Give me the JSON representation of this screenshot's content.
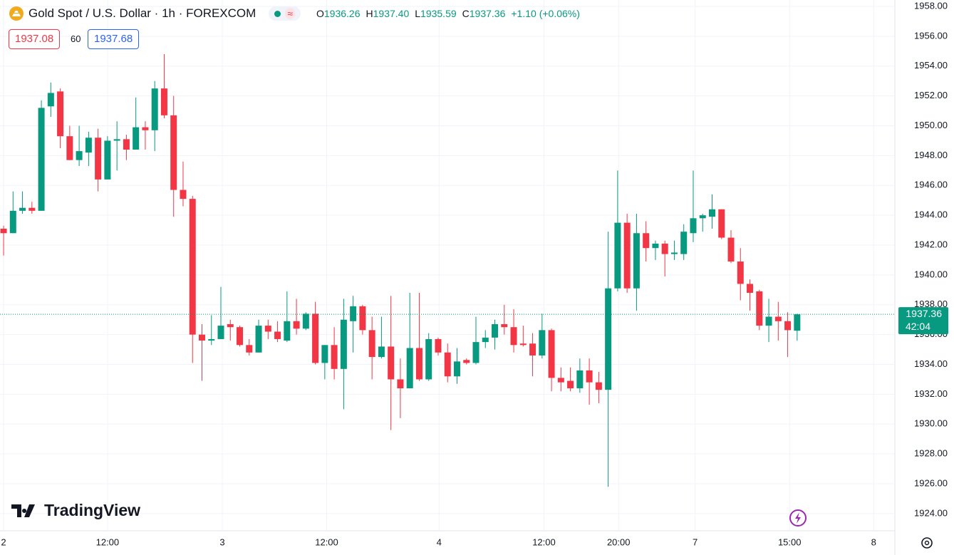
{
  "header": {
    "title": "Gold Spot / U.S. Dollar · 1h · FOREXCOM",
    "ohlc": [
      {
        "label": "O",
        "value": "1936.26"
      },
      {
        "label": "H",
        "value": "1937.40"
      },
      {
        "label": "L",
        "value": "1935.59"
      },
      {
        "label": "C",
        "value": "1937.36"
      }
    ],
    "change": "+1.10 (+0.06%)",
    "sell": "1937.08",
    "spread": "60",
    "buy": "1937.68",
    "brand": "TradingView"
  },
  "chart_data": {
    "type": "candlestick",
    "up_color": "#089981",
    "down_color": "#f23645",
    "grid": true,
    "open": [
      1943.1,
      1942.8,
      1944.3,
      1944.5,
      1944.3,
      1951.3,
      1952.3,
      1949.3,
      1947.7,
      1948.2,
      1949.2,
      1946.4,
      1949.0,
      1949.1,
      1948.4,
      1949.9,
      1949.7,
      1952.5,
      1950.7,
      1945.7,
      1945.1,
      1936.0,
      1935.6,
      1935.7,
      1936.7,
      1936.5,
      1935.3,
      1934.8,
      1936.6,
      1936.2,
      1935.6,
      1936.9,
      1936.4,
      1937.4,
      1934.1,
      1935.3,
      1933.7,
      1936.9,
      1937.9,
      1936.3,
      1934.5,
      1935.2,
      1933.0,
      1932.4,
      1935.1,
      1933.0,
      1935.7,
      1934.8,
      1933.2,
      1934.3,
      1934.1,
      1935.5,
      1935.8,
      1936.7,
      1936.5,
      1935.4,
      1935.4,
      1934.6,
      1936.3,
      1933.1,
      1932.9,
      1932.4,
      1933.6,
      1932.8,
      1932.3,
      1939.1,
      1943.5,
      1939.1,
      1942.8,
      1941.8,
      1942.1,
      1941.4,
      1941.4,
      1942.8,
      1943.8,
      1943.9,
      1944.4,
      1942.5,
      1940.9,
      1939.4,
      1938.9,
      1936.6,
      1937.2,
      1936.9,
      1936.26
    ],
    "high": [
      1943.3,
      1945.6,
      1945.6,
      1944.9,
      1951.7,
      1952.9,
      1952.5,
      1950.0,
      1950.0,
      1949.6,
      1949.8,
      1949.3,
      1950.3,
      1949.4,
      1951.9,
      1950.3,
      1953.0,
      1954.8,
      1952.0,
      1947.6,
      1945.3,
      1936.7,
      1937.3,
      1939.2,
      1937.0,
      1936.6,
      1935.7,
      1937.0,
      1937.0,
      1936.9,
      1938.9,
      1938.4,
      1937.5,
      1938.2,
      1935.3,
      1936.5,
      1938.4,
      1938.6,
      1938.0,
      1937.2,
      1937.2,
      1938.6,
      1934.4,
      1938.8,
      1938.8,
      1936.1,
      1935.8,
      1935.4,
      1935.1,
      1934.4,
      1937.2,
      1936.3,
      1937.0,
      1938.0,
      1937.7,
      1936.6,
      1936.1,
      1937.4,
      1936.4,
      1933.8,
      1933.8,
      1934.4,
      1934.4,
      1933.5,
      1942.9,
      1947.0,
      1944.1,
      1944.1,
      1943.6,
      1942.3,
      1942.3,
      1942.3,
      1943.4,
      1947.0,
      1944.1,
      1945.4,
      1944.4,
      1943.0,
      1941.8,
      1939.7,
      1939.0,
      1938.4,
      1938.2,
      1937.5,
      1937.4
    ],
    "low": [
      1941.3,
      1942.8,
      1944.1,
      1944.1,
      1944.3,
      1950.6,
      1948.5,
      1947.7,
      1947.3,
      1947.3,
      1945.6,
      1946.4,
      1947.0,
      1947.7,
      1948.4,
      1948.4,
      1948.3,
      1950.5,
      1943.9,
      1944.6,
      1934.1,
      1932.9,
      1935.3,
      1935.7,
      1935.6,
      1935.2,
      1934.6,
      1934.8,
      1935.7,
      1935.5,
      1935.5,
      1936.0,
      1936.3,
      1934.0,
      1933.0,
      1933.0,
      1931.0,
      1934.8,
      1936.0,
      1933.0,
      1934.4,
      1929.6,
      1930.4,
      1932.4,
      1932.9,
      1932.9,
      1934.6,
      1932.8,
      1932.7,
      1934.0,
      1934.0,
      1935.1,
      1935.0,
      1936.0,
      1934.8,
      1935.2,
      1933.2,
      1934.4,
      1932.2,
      1932.2,
      1932.2,
      1932.1,
      1931.3,
      1931.4,
      1925.8,
      1938.9,
      1938.8,
      1937.6,
      1940.9,
      1941.0,
      1939.9,
      1941.0,
      1941.0,
      1942.2,
      1942.9,
      1943.1,
      1942.4,
      1940.8,
      1938.3,
      1937.6,
      1936.3,
      1935.5,
      1935.6,
      1934.5,
      1935.59
    ],
    "close": [
      1942.8,
      1944.3,
      1944.5,
      1944.3,
      1951.2,
      1952.2,
      1949.3,
      1947.7,
      1948.3,
      1949.2,
      1946.4,
      1949.0,
      1949.1,
      1948.4,
      1949.9,
      1949.7,
      1952.5,
      1950.7,
      1945.7,
      1945.1,
      1936.0,
      1935.6,
      1935.7,
      1936.6,
      1936.5,
      1935.3,
      1934.8,
      1936.6,
      1936.2,
      1935.7,
      1936.9,
      1936.4,
      1937.4,
      1934.1,
      1935.3,
      1933.7,
      1937.0,
      1937.9,
      1936.3,
      1934.5,
      1935.2,
      1933.0,
      1932.4,
      1935.1,
      1933.0,
      1935.7,
      1934.8,
      1933.2,
      1934.2,
      1934.1,
      1935.5,
      1935.8,
      1936.7,
      1936.5,
      1935.3,
      1935.3,
      1934.6,
      1936.3,
      1933.1,
      1932.8,
      1932.4,
      1933.6,
      1932.8,
      1932.3,
      1939.1,
      1943.5,
      1939.1,
      1942.8,
      1941.8,
      1942.1,
      1941.4,
      1941.5,
      1942.9,
      1943.8,
      1944.0,
      1944.4,
      1942.5,
      1940.9,
      1939.4,
      1938.8,
      1936.6,
      1937.2,
      1936.9,
      1936.3,
      1937.36
    ],
    "xlim": [
      -0.38,
      94.27
    ],
    "xticks": [
      {
        "value": 0,
        "label": "2"
      },
      {
        "value": 11,
        "label": "12:00"
      },
      {
        "value": 23.15,
        "label": "3"
      },
      {
        "value": 34.2,
        "label": "12:00"
      },
      {
        "value": 46.1,
        "label": "4"
      },
      {
        "value": 57.2,
        "label": "12:00"
      },
      {
        "value": 65.1,
        "label": "20:00"
      },
      {
        "value": 73.2,
        "label": "7"
      },
      {
        "value": 83.2,
        "label": "15:00"
      },
      {
        "value": 92.1,
        "label": "8"
      }
    ],
    "ylim": [
      1922.85,
      1958.43
    ],
    "yticks": [
      {
        "value": 1924,
        "label": "1924.00"
      },
      {
        "value": 1926,
        "label": "1926.00"
      },
      {
        "value": 1928,
        "label": "1928.00"
      },
      {
        "value": 1930,
        "label": "1930.00"
      },
      {
        "value": 1932,
        "label": "1932.00"
      },
      {
        "value": 1934,
        "label": "1934.00"
      },
      {
        "value": 1936,
        "label": "1936.00"
      },
      {
        "value": 1938,
        "label": "1938.00"
      },
      {
        "value": 1940,
        "label": "1940.00"
      },
      {
        "value": 1942,
        "label": "1942.00"
      },
      {
        "value": 1944,
        "label": "1944.00"
      },
      {
        "value": 1946,
        "label": "1946.00"
      },
      {
        "value": 1948,
        "label": "1948.00"
      },
      {
        "value": 1950,
        "label": "1950.00"
      },
      {
        "value": 1952,
        "label": "1952.00"
      },
      {
        "value": 1954,
        "label": "1954.00"
      },
      {
        "value": 1956,
        "label": "1956.00"
      },
      {
        "value": 1958,
        "label": "1958.00"
      }
    ],
    "current_price": 1937.36,
    "countdown": "42:04"
  }
}
